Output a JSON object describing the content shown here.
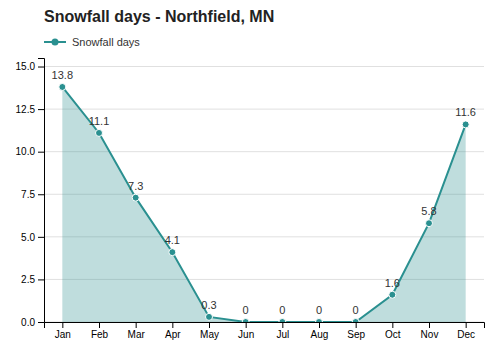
{
  "chart_data": {
    "type": "area",
    "title": "Snowfall days - Northfield, MN",
    "categories": [
      "Jan",
      "Feb",
      "Mar",
      "Apr",
      "May",
      "Jun",
      "Jul",
      "Aug",
      "Sep",
      "Oct",
      "Nov",
      "Dec"
    ],
    "series": [
      {
        "name": "Snowfall days",
        "color": "#2a9090",
        "values": [
          13.8,
          11.1,
          7.3,
          4.1,
          0.3,
          0,
          0,
          0,
          0,
          1.6,
          5.8,
          11.6
        ]
      }
    ],
    "ylim": [
      0,
      15.5
    ],
    "yticks": [
      {
        "value": 0.0,
        "label": "0.0"
      },
      2.5,
      {
        "value": 5.0,
        "label": "5.0"
      },
      7.5,
      {
        "value": 10.0,
        "label": "10.0"
      },
      12.5,
      {
        "value": 15.0,
        "label": "15.0"
      }
    ],
    "grid": true,
    "legend": "upper left",
    "data_labels": true,
    "marker": "circle"
  }
}
